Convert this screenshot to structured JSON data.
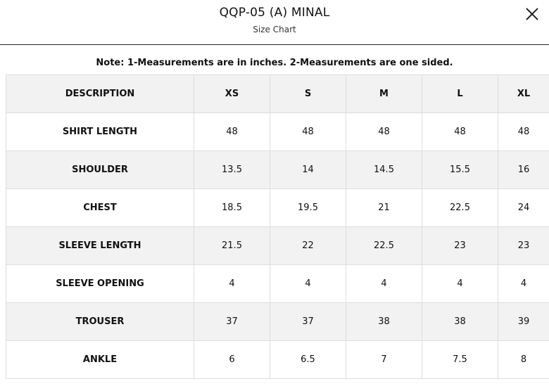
{
  "header": {
    "title": "QQP-05 (A) MINAL",
    "subtitle": "Size Chart",
    "close_icon": "close-icon"
  },
  "note": "Note: 1-Measurements are in inches. 2-Measurements are one sided.",
  "table": {
    "columns": [
      "DESCRIPTION",
      "XS",
      "S",
      "M",
      "L",
      "XL"
    ],
    "rows": [
      {
        "label": "SHIRT LENGTH",
        "values": [
          "48",
          "48",
          "48",
          "48",
          "48"
        ]
      },
      {
        "label": "SHOULDER",
        "values": [
          "13.5",
          "14",
          "14.5",
          "15.5",
          "16"
        ]
      },
      {
        "label": "CHEST",
        "values": [
          "18.5",
          "19.5",
          "21",
          "22.5",
          "24"
        ]
      },
      {
        "label": "SLEEVE LENGTH",
        "values": [
          "21.5",
          "22",
          "22.5",
          "23",
          "23"
        ]
      },
      {
        "label": "SLEEVE OPENING",
        "values": [
          "4",
          "4",
          "4",
          "4",
          "4"
        ]
      },
      {
        "label": "TROUSER",
        "values": [
          "37",
          "37",
          "38",
          "38",
          "39"
        ]
      },
      {
        "label": "ANKLE",
        "values": [
          "6",
          "6.5",
          "7",
          "7.5",
          "8"
        ]
      }
    ]
  },
  "colors": {
    "header_row_bg": "#f2f2f2",
    "shaded_row_bg": "#f2f2f2",
    "border": "#dddddd"
  }
}
